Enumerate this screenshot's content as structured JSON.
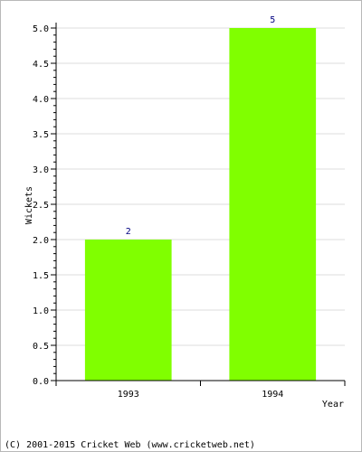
{
  "chart_data": {
    "type": "bar",
    "categories": [
      "1993",
      "1994"
    ],
    "values": [
      2,
      5
    ],
    "data_labels": [
      "2",
      "5"
    ],
    "xlabel": "Year",
    "ylabel": "Wickets",
    "ylim": [
      0,
      5
    ],
    "yticks": [
      "0.0",
      "0.5",
      "1.0",
      "1.5",
      "2.0",
      "2.5",
      "3.0",
      "3.5",
      "4.0",
      "4.5",
      "5.0"
    ],
    "grid": true,
    "colors": {
      "bar": "#80ff00",
      "grid": "#dcdcdc",
      "label": "#000080",
      "axis": "#000000"
    }
  },
  "footer": {
    "text": "(C) 2001-2015 Cricket Web (www.cricketweb.net)"
  }
}
